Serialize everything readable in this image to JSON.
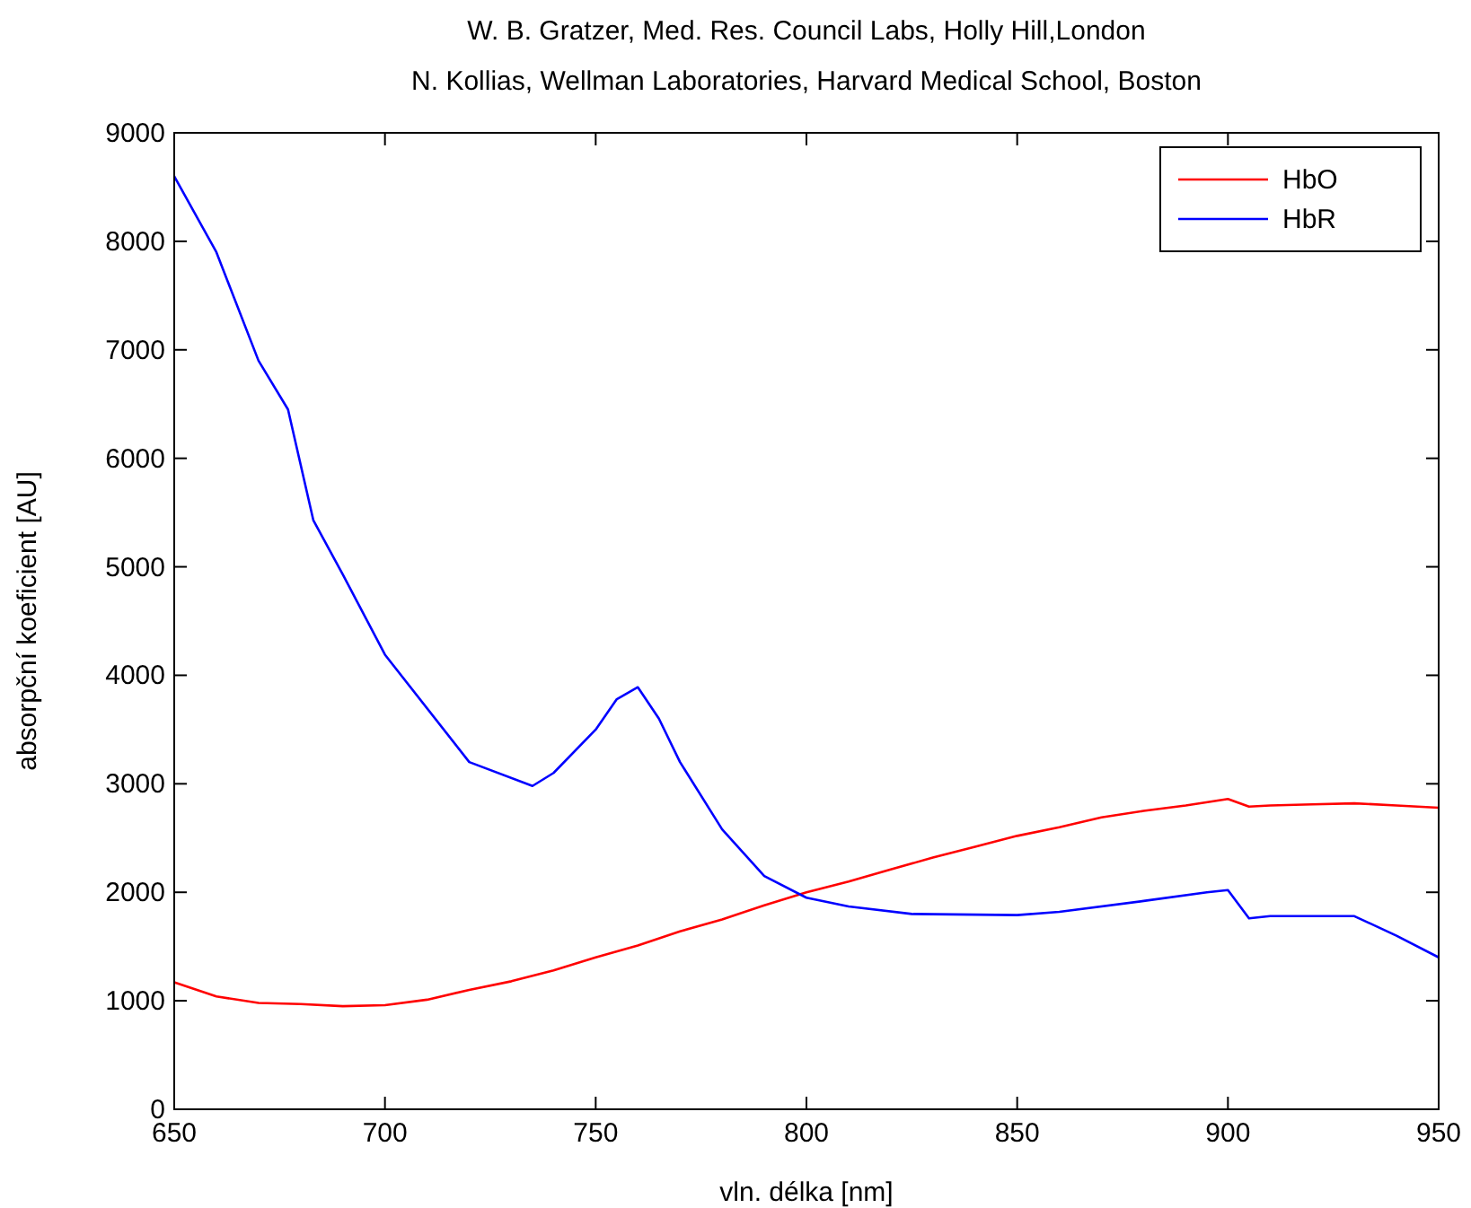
{
  "chart_data": {
    "type": "line",
    "title": "W. B. Gratzer, Med. Res. Council Labs, Holly Hill,London",
    "subtitle": "N. Kollias, Wellman Laboratories, Harvard Medical School, Boston",
    "xlabel": "vln. délka [nm]",
    "ylabel": "absorpční koeficient [AU]",
    "xlim": [
      650,
      950
    ],
    "xticks": [
      650,
      700,
      750,
      800,
      850,
      900,
      950
    ],
    "ylim": [
      0,
      9000
    ],
    "yticks": [
      0,
      1000,
      2000,
      3000,
      4000,
      5000,
      6000,
      7000,
      8000,
      9000
    ],
    "grid": false,
    "legend": "top right",
    "line_style": "solid",
    "series": [
      {
        "name": "HbO",
        "color": "#ff0000",
        "x": [
          650,
          660,
          670,
          680,
          690,
          700,
          710,
          720,
          730,
          740,
          750,
          760,
          770,
          780,
          790,
          800,
          810,
          820,
          830,
          840,
          850,
          860,
          870,
          880,
          890,
          900,
          905,
          910,
          920,
          930,
          940,
          950
        ],
        "values": [
          1170,
          1040,
          980,
          970,
          950,
          960,
          1010,
          1100,
          1180,
          1280,
          1400,
          1510,
          1640,
          1750,
          1880,
          2000,
          2100,
          2210,
          2320,
          2420,
          2520,
          2600,
          2690,
          2750,
          2800,
          2860,
          2790,
          2800,
          2810,
          2820,
          2800,
          2780
        ]
      },
      {
        "name": "HbR",
        "color": "#0000ff",
        "x": [
          650,
          660,
          670,
          677,
          683,
          690,
          700,
          720,
          735,
          740,
          750,
          755,
          760,
          765,
          770,
          780,
          790,
          800,
          810,
          825,
          850,
          860,
          880,
          895,
          900,
          905,
          910,
          930,
          940,
          950
        ],
        "values": [
          8600,
          7900,
          6900,
          6450,
          5430,
          4930,
          4190,
          3200,
          2980,
          3100,
          3500,
          3780,
          3890,
          3600,
          3200,
          2580,
          2150,
          1950,
          1870,
          1800,
          1790,
          1820,
          1920,
          2000,
          2020,
          1760,
          1780,
          1780,
          1600,
          1400
        ]
      }
    ]
  }
}
